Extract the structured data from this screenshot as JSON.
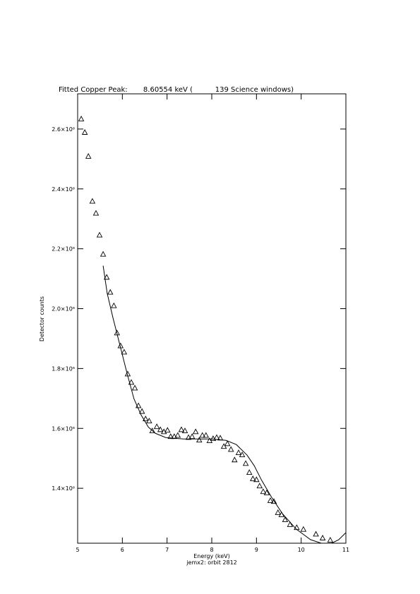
{
  "chart_data": {
    "type": "scatter",
    "title": "Fitted Copper Peak:       8.60554 keV (          139 Science windows)",
    "x_label": "Energy (keV)",
    "subtitle": "jemx2: orbit 2812",
    "y_label": "Detector counts",
    "xlim": [
      5,
      11
    ],
    "xticks": [
      5,
      6,
      7,
      8,
      9,
      10,
      11
    ],
    "ylim": [
      1216500,
      2717600
    ],
    "yticks": [
      {
        "value": 1400000,
        "label": "1.4×10⁶"
      },
      {
        "value": 1600000,
        "label": "1.6×10⁶"
      },
      {
        "value": 1800000,
        "label": "1.8×10⁶"
      },
      {
        "value": 2000000,
        "label": "2.0×10⁶"
      },
      {
        "value": 2200000,
        "label": "2.2×10⁶"
      },
      {
        "value": 2400000,
        "label": "2.4×10⁶"
      },
      {
        "value": 2600000,
        "label": "2.6×10⁶"
      }
    ],
    "color": "#000000",
    "series": [
      {
        "style": "markers",
        "x": [
          5.08,
          5.16,
          5.24,
          5.33,
          5.41,
          5.49,
          5.57,
          5.65,
          5.73,
          5.81,
          5.88,
          5.96,
          6.04,
          6.12,
          6.2,
          6.28,
          6.36,
          6.44,
          6.52,
          6.6,
          6.67,
          6.77,
          6.85,
          6.93,
          7.01,
          7.08,
          7.16,
          7.24,
          7.32,
          7.4,
          7.48,
          7.56,
          7.64,
          7.72,
          7.79,
          7.87,
          7.95,
          8.03,
          8.11,
          8.19,
          8.27,
          8.35,
          8.43,
          8.51,
          8.6,
          8.68,
          8.76,
          8.84,
          8.92,
          9.0,
          9.07,
          9.15,
          9.23,
          9.31,
          9.39,
          9.48,
          9.56,
          9.64,
          9.75,
          9.9,
          10.05,
          10.33,
          10.48,
          10.65
        ],
        "values": [
          2633000,
          2588000,
          2508000,
          2358000,
          2318000,
          2245000,
          2181000,
          2104000,
          2054000,
          2009000,
          1918000,
          1875000,
          1854000,
          1781000,
          1753000,
          1734000,
          1675000,
          1656000,
          1631000,
          1624000,
          1591000,
          1605000,
          1595000,
          1588000,
          1593000,
          1572000,
          1572000,
          1576000,
          1595000,
          1591000,
          1569000,
          1572000,
          1588000,
          1560000,
          1576000,
          1576000,
          1558000,
          1565000,
          1569000,
          1567000,
          1539000,
          1548000,
          1529000,
          1494000,
          1518000,
          1511000,
          1482000,
          1452000,
          1431000,
          1428000,
          1407000,
          1388000,
          1384000,
          1358000,
          1355000,
          1318000,
          1311000,
          1294000,
          1278000,
          1268000,
          1262000,
          1246000,
          1233000,
          1226000
        ]
      },
      {
        "style": "line",
        "x": [
          5.57,
          5.66,
          5.79,
          5.95,
          6.11,
          6.26,
          6.42,
          6.58,
          6.74,
          6.97,
          7.37,
          8.0,
          8.32,
          8.55,
          8.79,
          8.95,
          9.11,
          9.34,
          9.58,
          9.89,
          10.21,
          10.45,
          10.68,
          10.84,
          11.0
        ],
        "values": [
          2143500,
          2051800,
          1969400,
          1875300,
          1781200,
          1698800,
          1644700,
          1604700,
          1583500,
          1569400,
          1564700,
          1564700,
          1560000,
          1545900,
          1510600,
          1475300,
          1428200,
          1369400,
          1315300,
          1263500,
          1228200,
          1216500,
          1216500,
          1228200,
          1251800
        ]
      }
    ]
  }
}
